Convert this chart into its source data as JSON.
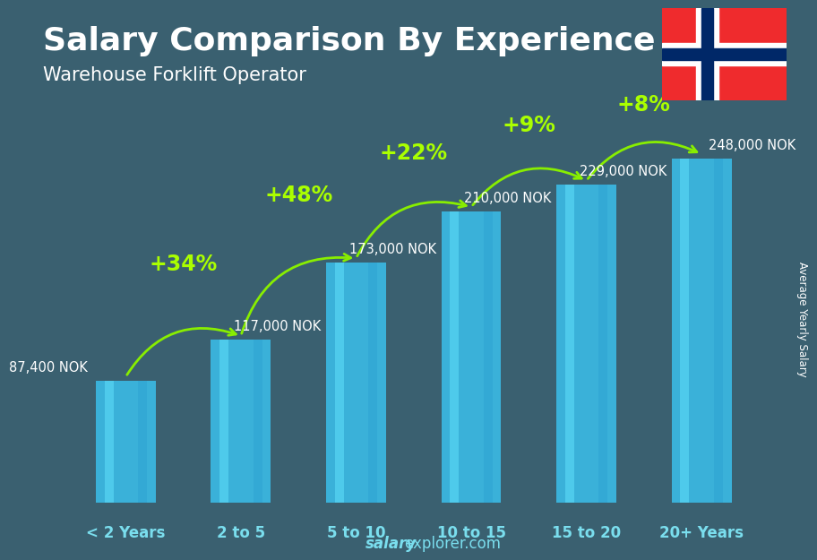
{
  "title": "Salary Comparison By Experience",
  "subtitle": "Warehouse Forklift Operator",
  "categories": [
    "< 2 Years",
    "2 to 5",
    "5 to 10",
    "10 to 15",
    "15 to 20",
    "20+ Years"
  ],
  "values": [
    87400,
    117000,
    173000,
    210000,
    229000,
    248000
  ],
  "labels": [
    "87,400 NOK",
    "117,000 NOK",
    "173,000 NOK",
    "210,000 NOK",
    "229,000 NOK",
    "248,000 NOK"
  ],
  "pct_changes": [
    "+34%",
    "+48%",
    "+22%",
    "+9%",
    "+8%"
  ],
  "bar_color_top": "#5ddcf8",
  "bar_color_mid": "#3bbde8",
  "bar_color_bot": "#2a9dd0",
  "bar_edge_color": "#55ccf0",
  "title_color": "#ffffff",
  "subtitle_color": "#ffffff",
  "label_color": "#ffffff",
  "pct_color": "#aaff00",
  "arrow_color": "#88ee00",
  "bg_color": "#3a6070",
  "watermark_bold": "salary",
  "watermark_normal": "explorer.com",
  "ylabel_text": "Average Yearly Salary",
  "title_fontsize": 26,
  "subtitle_fontsize": 15,
  "label_fontsize": 10.5,
  "pct_fontsize": 17,
  "cat_fontsize": 12,
  "ylim_max": 290000,
  "label_positions": [
    [
      0,
      87400,
      "left"
    ],
    [
      1,
      117000,
      "left"
    ],
    [
      2,
      173000,
      "left"
    ],
    [
      3,
      210000,
      "left"
    ],
    [
      4,
      229000,
      "left"
    ],
    [
      5,
      248000,
      "right"
    ]
  ],
  "arc_heights": [
    160000,
    210000,
    240000,
    260000,
    275000
  ],
  "pct_heights": [
    172000,
    222000,
    252000,
    272000,
    287000
  ]
}
